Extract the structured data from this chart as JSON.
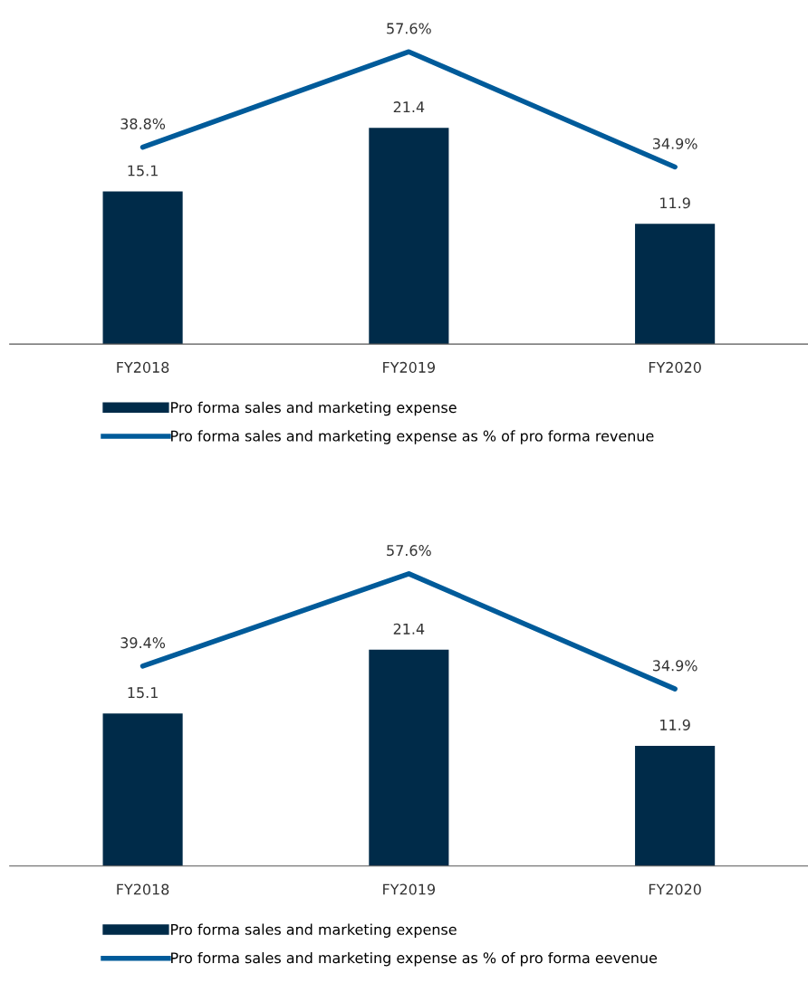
{
  "chart_data": [
    {
      "type": "bar",
      "categories": [
        "FY2018",
        "FY2019",
        "FY2020"
      ],
      "tick_labels": "x",
      "grid": false,
      "legend": "bottom",
      "series": [
        {
          "name": "Pro forma sales and marketing expense",
          "color": "#002b49",
          "values": [
            15.1,
            21.4,
            11.9
          ],
          "value_labels": [
            "15.1",
            "21.4",
            "11.9"
          ]
        },
        {
          "type": "line",
          "axis": "y2",
          "name": "Pro forma sales and marketing expense as % of pro forma revenue",
          "color": "#005b9a",
          "values": [
            38.8,
            57.6,
            34.9
          ],
          "value_labels": [
            "38.8%",
            "57.6%",
            "34.9%"
          ]
        }
      ]
    },
    {
      "type": "bar",
      "categories": [
        "FY2018",
        "FY2019",
        "FY2020"
      ],
      "tick_labels": "x",
      "grid": false,
      "legend": "bottom",
      "series": [
        {
          "name": "Pro forma sales and marketing expense",
          "color": "#002b49",
          "values": [
            15.1,
            21.4,
            11.9
          ],
          "value_labels": [
            "15.1",
            "21.4",
            "11.9"
          ]
        },
        {
          "type": "line",
          "axis": "y2",
          "name": "Pro forma sales and marketing expense as % of pro forma eevenue",
          "color": "#005b9a",
          "values": [
            39.4,
            57.6,
            34.9
          ],
          "value_labels": [
            "39.4%",
            "57.6%",
            "34.9%"
          ]
        }
      ]
    }
  ]
}
